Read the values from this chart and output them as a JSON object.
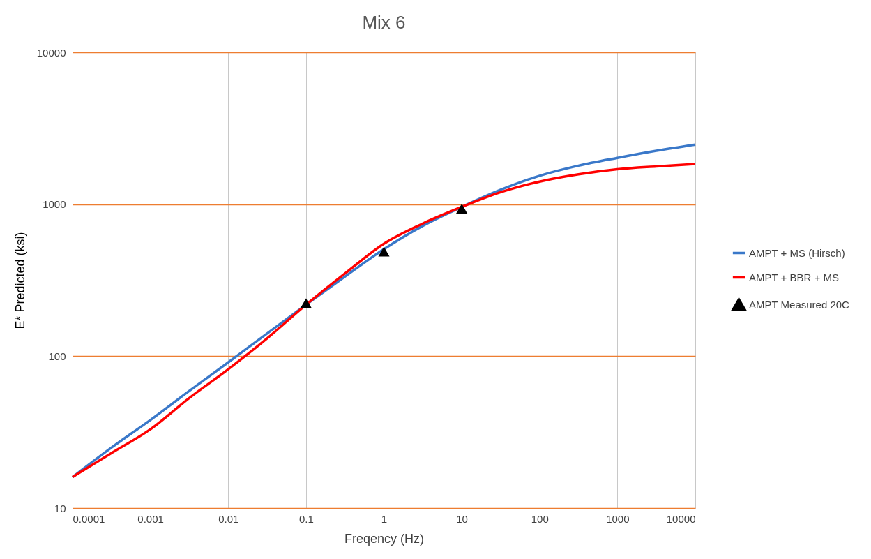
{
  "chart_data": {
    "type": "line",
    "title": "Mix 6",
    "xlabel": "Freqency (Hz)",
    "ylabel": "E* Predicted (ksi)",
    "log": "xy",
    "grid": true,
    "legend": "right",
    "xlim": [
      0.0001,
      10000
    ],
    "xticks": [
      0.0001,
      0.001,
      0.01,
      0.1,
      1,
      10,
      100,
      1000,
      10000
    ],
    "ylim": [
      10,
      10000
    ],
    "yticks": [
      10,
      100,
      1000,
      10000
    ],
    "series": [
      {
        "name": "AMPT + MS (Hirsch)",
        "type": "line",
        "color": "#3a78c9",
        "x": [
          0.0001,
          0.000316,
          0.001,
          0.00316,
          0.01,
          0.0316,
          0.1,
          0.316,
          1,
          3.16,
          10,
          31.6,
          100,
          316,
          1000,
          3160,
          10000
        ],
        "values": [
          16,
          25,
          38,
          59,
          91,
          141,
          218,
          334,
          506,
          721,
          960,
          1245,
          1540,
          1795,
          2020,
          2250,
          2470
        ]
      },
      {
        "name": "AMPT + BBR + MS",
        "type": "line",
        "color": "#ff0000",
        "x": [
          0.0001,
          0.000316,
          0.001,
          0.00316,
          0.01,
          0.0316,
          0.1,
          0.316,
          1,
          3.16,
          10,
          31.6,
          100,
          316,
          1000,
          3160,
          10000
        ],
        "values": [
          16,
          23,
          33,
          53,
          82,
          131,
          218,
          350,
          550,
          747,
          960,
          1200,
          1410,
          1575,
          1700,
          1775,
          1840
        ]
      },
      {
        "name": "AMPT Measured 20C",
        "type": "scatter",
        "marker": "triangle",
        "color": "#000000",
        "x": [
          0.1,
          1,
          10
        ],
        "values": [
          223,
          488,
          935
        ]
      }
    ]
  }
}
